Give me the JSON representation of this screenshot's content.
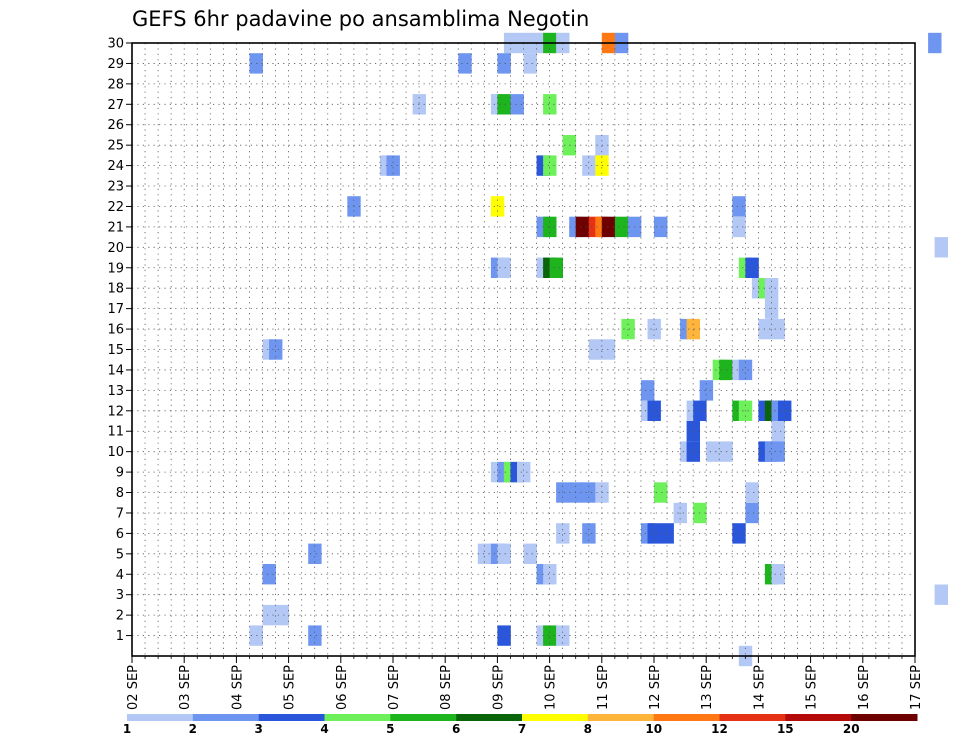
{
  "chart_data": {
    "type": "heatmap",
    "title": "GEFS 6hr padavine po ansamblima Negotin",
    "x_tick_labels": [
      "02 SEP",
      "03 SEP",
      "04 SEP",
      "05 SEP",
      "06 SEP",
      "07 SEP",
      "08 SEP",
      "09 SEP",
      "10 SEP",
      "11 SEP",
      "12 SEP",
      "13 SEP",
      "14 SEP",
      "15 SEP",
      "16 SEP",
      "17 SEP"
    ],
    "y_tick_labels": [
      "1",
      "2",
      "3",
      "4",
      "5",
      "6",
      "7",
      "8",
      "9",
      "10",
      "11",
      "12",
      "13",
      "14",
      "15",
      "16",
      "17",
      "18",
      "19",
      "20",
      "21",
      "22",
      "23",
      "24",
      "25",
      "26",
      "27",
      "28",
      "29",
      "30"
    ],
    "grid": true,
    "legend_position": "bottom",
    "legend": {
      "labels": [
        "1",
        "2",
        "3",
        "4",
        "5",
        "6",
        "7",
        "8",
        "10",
        "12",
        "15",
        "20"
      ],
      "colors": [
        "#b4c8f5",
        "#6e96f0",
        "#2a56dc",
        "#6ef05a",
        "#1eb41e",
        "#0a640a",
        "#ffff00",
        "#ffb43c",
        "#ff7814",
        "#e63214",
        "#b40a0a",
        "#6e0000"
      ]
    },
    "cells_note_units": "x = forecast step (6 h steps from 02 SEP 00z), y = ensemble member, level = color class index",
    "cells": [
      [
        58,
        30,
        1
      ],
      [
        60,
        30,
        1
      ],
      [
        62,
        30,
        1
      ],
      [
        64,
        30,
        5
      ],
      [
        66,
        30,
        1
      ],
      [
        73,
        30,
        9
      ],
      [
        75,
        30,
        2
      ],
      [
        123,
        30,
        2
      ],
      [
        19,
        29,
        2
      ],
      [
        51,
        29,
        2
      ],
      [
        57,
        29,
        2
      ],
      [
        61,
        29,
        1
      ],
      [
        44,
        27,
        1
      ],
      [
        56,
        27,
        1
      ],
      [
        57,
        27,
        5
      ],
      [
        59,
        27,
        2
      ],
      [
        64,
        27,
        4
      ],
      [
        67,
        25,
        4
      ],
      [
        72,
        25,
        1
      ],
      [
        39,
        24,
        1
      ],
      [
        40,
        24,
        2
      ],
      [
        63,
        24,
        3
      ],
      [
        64,
        24,
        4
      ],
      [
        70,
        24,
        1
      ],
      [
        72,
        24,
        7
      ],
      [
        34,
        22,
        2
      ],
      [
        56,
        22,
        7
      ],
      [
        93,
        22,
        2
      ],
      [
        63,
        21,
        2
      ],
      [
        64,
        21,
        5
      ],
      [
        68,
        21,
        2
      ],
      [
        69,
        21,
        12
      ],
      [
        71,
        21,
        10
      ],
      [
        72,
        21,
        9
      ],
      [
        73,
        21,
        12
      ],
      [
        75,
        21,
        5
      ],
      [
        77,
        21,
        2
      ],
      [
        81,
        21,
        2
      ],
      [
        93,
        21,
        1
      ],
      [
        124,
        20,
        1
      ],
      [
        56,
        19,
        2
      ],
      [
        57,
        19,
        1
      ],
      [
        63,
        19,
        1
      ],
      [
        64,
        19,
        6
      ],
      [
        65,
        19,
        5
      ],
      [
        94,
        19,
        4
      ],
      [
        95,
        19,
        3
      ],
      [
        96,
        18,
        1
      ],
      [
        97,
        18,
        4
      ],
      [
        98,
        18,
        1
      ],
      [
        98,
        17,
        1
      ],
      [
        76,
        16,
        4
      ],
      [
        80,
        16,
        1
      ],
      [
        85,
        16,
        2
      ],
      [
        86,
        16,
        8
      ],
      [
        97,
        16,
        1
      ],
      [
        99,
        16,
        1
      ],
      [
        21,
        15,
        1
      ],
      [
        22,
        15,
        2
      ],
      [
        71,
        15,
        1
      ],
      [
        73,
        15,
        1
      ],
      [
        90,
        14,
        4
      ],
      [
        91,
        14,
        5
      ],
      [
        93,
        14,
        1
      ],
      [
        94,
        14,
        2
      ],
      [
        79,
        13,
        2
      ],
      [
        88,
        13,
        2
      ],
      [
        79,
        12,
        1
      ],
      [
        80,
        12,
        3
      ],
      [
        86,
        12,
        1
      ],
      [
        87,
        12,
        3
      ],
      [
        93,
        12,
        5
      ],
      [
        94,
        12,
        4
      ],
      [
        97,
        12,
        3
      ],
      [
        98,
        12,
        6
      ],
      [
        99,
        12,
        2
      ],
      [
        100,
        12,
        3
      ],
      [
        86,
        11,
        3
      ],
      [
        99,
        11,
        1
      ],
      [
        85,
        10,
        1
      ],
      [
        86,
        10,
        3
      ],
      [
        89,
        10,
        1
      ],
      [
        91,
        10,
        1
      ],
      [
        97,
        10,
        3
      ],
      [
        98,
        10,
        2
      ],
      [
        99,
        10,
        2
      ],
      [
        56,
        9,
        1
      ],
      [
        57,
        9,
        2
      ],
      [
        58,
        9,
        4
      ],
      [
        59,
        9,
        3
      ],
      [
        60,
        9,
        1
      ],
      [
        66,
        8,
        2
      ],
      [
        68,
        8,
        2
      ],
      [
        70,
        8,
        2
      ],
      [
        72,
        8,
        1
      ],
      [
        81,
        8,
        4
      ],
      [
        95,
        8,
        1
      ],
      [
        84,
        7,
        1
      ],
      [
        87,
        7,
        4
      ],
      [
        95,
        7,
        2
      ],
      [
        66,
        6,
        1
      ],
      [
        70,
        6,
        2
      ],
      [
        79,
        6,
        2
      ],
      [
        80,
        6,
        3
      ],
      [
        82,
        6,
        3
      ],
      [
        93,
        6,
        3
      ],
      [
        28,
        5,
        2
      ],
      [
        54,
        5,
        1
      ],
      [
        56,
        5,
        2
      ],
      [
        57,
        5,
        1
      ],
      [
        61,
        5,
        1
      ],
      [
        21,
        4,
        2
      ],
      [
        63,
        4,
        2
      ],
      [
        64,
        4,
        1
      ],
      [
        98,
        4,
        5
      ],
      [
        99,
        4,
        1
      ],
      [
        124,
        3,
        1
      ],
      [
        21,
        2,
        1
      ],
      [
        23,
        2,
        1
      ],
      [
        19,
        1,
        1
      ],
      [
        28,
        1,
        2
      ],
      [
        57,
        1,
        3
      ],
      [
        63,
        1,
        1
      ],
      [
        64,
        1,
        5
      ],
      [
        66,
        1,
        1
      ],
      [
        94,
        0,
        1
      ]
    ]
  }
}
